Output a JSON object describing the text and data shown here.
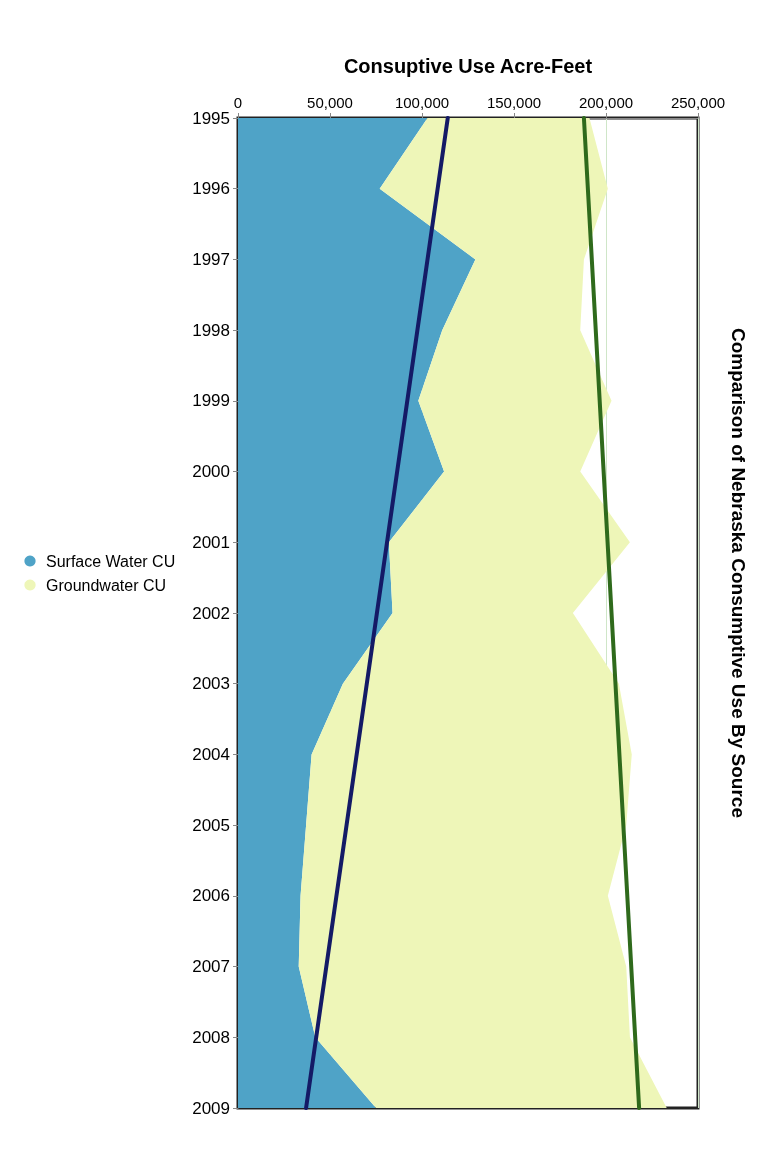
{
  "chart_data": {
    "type": "area",
    "title": "Comparison of Nebraska Consumptive Use By Source",
    "xlabel": "Consuptive Use Acre-Feet",
    "orientation": "horizontal",
    "stacked": true,
    "categories": [
      "1995",
      "1996",
      "1997",
      "1998",
      "1999",
      "2000",
      "2001",
      "2002",
      "2003",
      "2004",
      "2005",
      "2006",
      "2007",
      "2008",
      "2009"
    ],
    "series": [
      {
        "name": "Surface Water CU",
        "color": "#4fa3c7",
        "values": [
          103000,
          77000,
          129000,
          111000,
          98000,
          112000,
          82000,
          84000,
          57000,
          40000,
          37000,
          34000,
          33000,
          42000,
          75000
        ]
      },
      {
        "name": "Groundwater CU",
        "color": "#eef6b8",
        "values": [
          88000,
          124000,
          59000,
          75000,
          105000,
          74000,
          131000,
          98000,
          150000,
          174000,
          174000,
          167000,
          178000,
          171000,
          158000
        ]
      },
      {
        "type": "line",
        "color": "#141a66",
        "values": [
          114000,
          null,
          null,
          null,
          null,
          null,
          null,
          null,
          null,
          null,
          null,
          null,
          null,
          null,
          37000
        ]
      },
      {
        "type": "line",
        "color": "#2f6a1c",
        "values": [
          188000,
          null,
          null,
          null,
          null,
          null,
          null,
          null,
          null,
          null,
          null,
          null,
          null,
          null,
          218000
        ]
      }
    ],
    "xlim": [
      0,
      250000
    ],
    "xticks": [
      0,
      {
        "value": 50000,
        "label": "50,000"
      },
      {
        "value": 100000,
        "label": "100,000"
      },
      {
        "value": 150000,
        "label": "150,000"
      },
      {
        "value": 200000,
        "label": "200,000"
      },
      {
        "value": 250000,
        "label": "250,000"
      }
    ],
    "grid": "x",
    "legend": "left"
  }
}
